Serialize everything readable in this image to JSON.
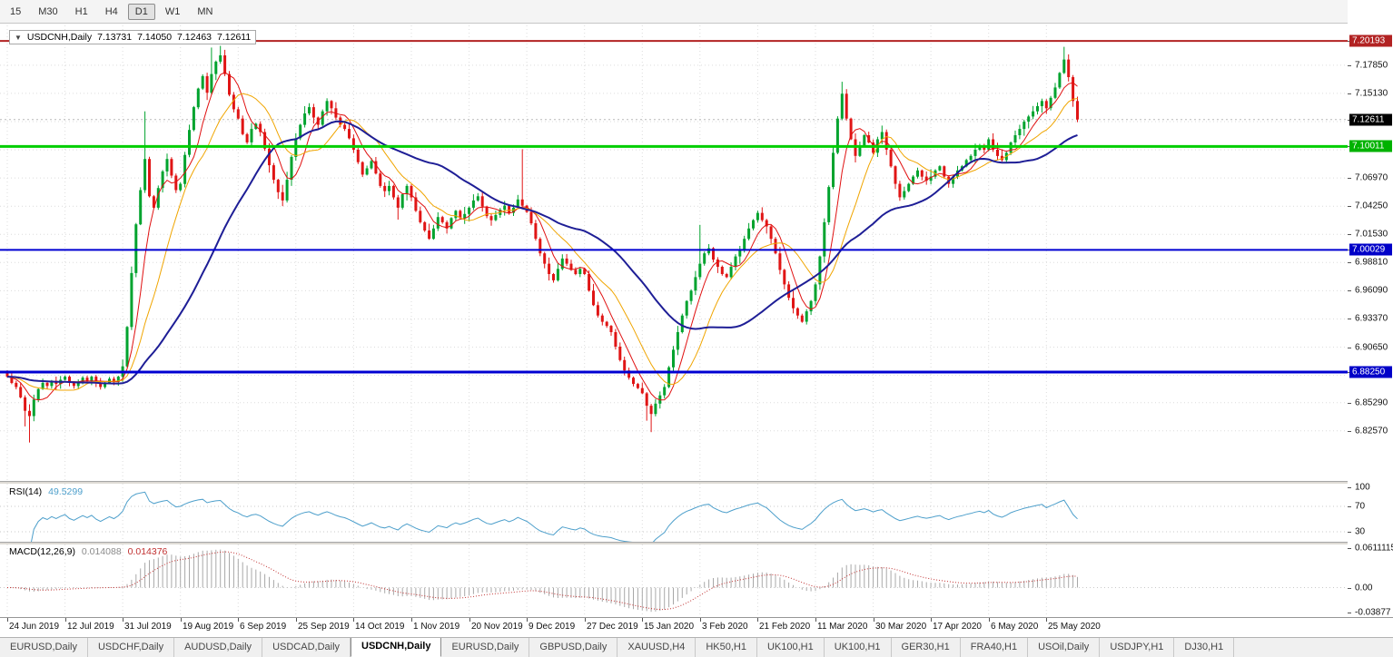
{
  "toolbar": {
    "timeframes": [
      {
        "label": "15",
        "active": false
      },
      {
        "label": "M30",
        "active": false
      },
      {
        "label": "H1",
        "active": false
      },
      {
        "label": "H4",
        "active": false
      },
      {
        "label": "D1",
        "active": true
      },
      {
        "label": "W1",
        "active": false
      },
      {
        "label": "MN",
        "active": false
      }
    ]
  },
  "chart_header": {
    "symbol": "USDCNH,Daily",
    "open": "7.13731",
    "high": "7.14050",
    "low": "7.12463",
    "close": "7.12611"
  },
  "price_axis": {
    "ticks": [
      "7.17850",
      "7.15130",
      "7.06970",
      "7.04250",
      "7.01530",
      "6.98810",
      "6.96090",
      "6.93370",
      "6.90650",
      "6.85290",
      "6.82570"
    ],
    "badges": [
      {
        "label": "7.20193",
        "value": 7.20193,
        "bg": "#B22222"
      },
      {
        "label": "7.12611",
        "value": 7.12611,
        "bg": "#000000"
      },
      {
        "label": "7.10011",
        "value": 7.10011,
        "bg": "#00B200"
      },
      {
        "label": "7.00029",
        "value": 7.00029,
        "bg": "#0000C8"
      },
      {
        "label": "6.88250",
        "value": 6.8825,
        "bg": "#0000C8"
      }
    ]
  },
  "rsi_panel": {
    "name": "RSI(14)",
    "value": "49.5299",
    "line_color": "#4D9FCB",
    "levels": [
      70,
      30
    ],
    "ylim": [
      14.3,
      105.7
    ],
    "axis": [
      {
        "label": "100",
        "value": 100
      },
      {
        "label": "70",
        "value": 70
      },
      {
        "label": "30",
        "value": 30
      }
    ]
  },
  "macd_panel": {
    "name": "MACD(12,26,9)",
    "value_main": "0.014088",
    "value_signal": "0.014376",
    "hist_color": "#A8A8A8",
    "signal_color": "#C03030",
    "ylim": [
      -0.0457,
      0.0668
    ],
    "axis": [
      {
        "label": "0.0611115",
        "value": 0.0611115
      },
      {
        "label": "0.00",
        "value": 0
      },
      {
        "label": "-0.03877",
        "value": -0.03877
      }
    ]
  },
  "time_axis": {
    "dates": [
      "24 Jun 2019",
      "12 Jul 2019",
      "31 Jul 2019",
      "19 Aug 2019",
      "6 Sep 2019",
      "25 Sep 2019",
      "14 Oct 2019",
      "1 Nov 2019",
      "20 Nov 2019",
      "9 Dec 2019",
      "27 Dec 2019",
      "15 Jan 2020",
      "3 Feb 2020",
      "21 Feb 2020",
      "11 Mar 2020",
      "30 Mar 2020",
      "17 Apr 2020",
      "6 May 2020",
      "25 May 2020"
    ]
  },
  "tabs": [
    {
      "label": "EURUSD,Daily",
      "active": false
    },
    {
      "label": "USDCHF,Daily",
      "active": false
    },
    {
      "label": "AUDUSD,Daily",
      "active": false
    },
    {
      "label": "USDCAD,Daily",
      "active": false
    },
    {
      "label": "USDCNH,Daily",
      "active": true
    },
    {
      "label": "EURUSD,Daily",
      "active": false
    },
    {
      "label": "GBPUSD,Daily",
      "active": false
    },
    {
      "label": "XAUUSD,H4",
      "active": false
    },
    {
      "label": "HK50,H1",
      "active": false
    },
    {
      "label": "UK100,H1",
      "active": false
    },
    {
      "label": "UK100,H1",
      "active": false
    },
    {
      "label": "GER30,H1",
      "active": false
    },
    {
      "label": "FRA40,H1",
      "active": false
    },
    {
      "label": "USOil,Daily",
      "active": false
    },
    {
      "label": "USDJPY,H1",
      "active": false
    },
    {
      "label": "DJ30,H1",
      "active": false
    }
  ],
  "chart_data": {
    "type": "candlestick",
    "symbol": "USDCNH",
    "timeframe": "Daily",
    "last_ohlc": {
      "open": 7.13731,
      "high": 7.1405,
      "low": 7.12463,
      "close": 7.12611
    },
    "ylim": [
      6.7774,
      7.2169
    ],
    "grid_prices": [
      7.1785,
      7.1513,
      7.1241,
      7.0969,
      7.0697,
      7.0425,
      7.0153,
      6.9881,
      6.9609,
      6.9337,
      6.9065,
      6.8793,
      6.8529,
      6.8257
    ],
    "hlines": [
      {
        "price": 7.20193,
        "color": "#B22222",
        "width": 2
      },
      {
        "price": 7.10011,
        "color": "#00CE00",
        "width": 3
      },
      {
        "price": 7.00029,
        "color": "#0000D2",
        "width": 2
      },
      {
        "price": 6.8825,
        "color": "#0000D2",
        "width": 3
      }
    ],
    "current_price": 7.12611,
    "up_color": "#00A32E",
    "down_color": "#E01515",
    "ma_lines": [
      {
        "period": 6,
        "color": "#E01010",
        "width": 1
      },
      {
        "period": 13,
        "color": "#F0A500",
        "width": 1
      },
      {
        "period": 34,
        "color": "#1E1E96",
        "width": 2
      }
    ],
    "rsi_period": 14,
    "macd_params": [
      12,
      26,
      9
    ],
    "closes": [
      6.878,
      6.872,
      6.868,
      6.858,
      6.845,
      6.84,
      6.856,
      6.866,
      6.872,
      6.869,
      6.874,
      6.871,
      6.875,
      6.878,
      6.872,
      6.869,
      6.873,
      6.877,
      6.874,
      6.878,
      6.872,
      6.868,
      6.872,
      6.876,
      6.873,
      6.878,
      6.888,
      6.926,
      6.978,
      7.025,
      7.058,
      7.088,
      7.052,
      7.041,
      7.06,
      7.076,
      7.088,
      7.072,
      7.058,
      7.064,
      7.092,
      7.116,
      7.138,
      7.156,
      7.168,
      7.152,
      7.17,
      7.182,
      7.188,
      7.17,
      7.15,
      7.136,
      7.127,
      7.112,
      7.104,
      7.117,
      7.122,
      7.114,
      7.098,
      7.082,
      7.068,
      7.056,
      7.048,
      7.068,
      7.09,
      7.108,
      7.121,
      7.132,
      7.138,
      7.128,
      7.121,
      7.134,
      7.144,
      7.137,
      7.128,
      7.121,
      7.117,
      7.108,
      7.097,
      7.085,
      7.073,
      7.079,
      7.086,
      7.074,
      7.062,
      7.057,
      7.062,
      7.051,
      7.041,
      7.054,
      7.062,
      7.051,
      7.038,
      7.027,
      7.019,
      7.011,
      7.021,
      7.032,
      7.027,
      7.021,
      7.031,
      7.038,
      7.031,
      7.035,
      7.041,
      7.048,
      7.052,
      7.042,
      7.033,
      7.029,
      7.034,
      7.039,
      7.043,
      7.036,
      7.041,
      7.049,
      7.043,
      7.037,
      7.026,
      7.011,
      6.997,
      6.987,
      6.977,
      6.971,
      6.982,
      6.992,
      6.987,
      6.981,
      6.977,
      6.982,
      6.977,
      6.961,
      6.947,
      6.937,
      6.931,
      6.927,
      6.921,
      6.907,
      6.894,
      6.884,
      6.877,
      6.871,
      6.867,
      6.862,
      6.85,
      6.842,
      6.852,
      6.86,
      6.868,
      6.887,
      6.904,
      6.921,
      6.937,
      6.951,
      6.961,
      6.974,
      6.987,
      6.997,
      7.002,
      6.991,
      6.984,
      6.977,
      6.974,
      6.984,
      6.994,
      7.001,
      7.011,
      7.021,
      7.029,
      7.036,
      7.029,
      7.023,
      7.011,
      6.997,
      6.981,
      6.967,
      6.954,
      6.944,
      6.937,
      6.931,
      6.941,
      6.951,
      6.967,
      6.994,
      7.027,
      7.061,
      7.094,
      7.127,
      7.151,
      7.127,
      7.107,
      7.091,
      7.101,
      7.111,
      7.104,
      7.094,
      7.107,
      7.114,
      7.097,
      7.081,
      7.064,
      7.051,
      7.057,
      7.064,
      7.071,
      7.077,
      7.071,
      7.067,
      7.071,
      7.077,
      7.081,
      7.071,
      7.064,
      7.071,
      7.077,
      7.081,
      7.087,
      7.091,
      7.097,
      7.101,
      7.097,
      7.107,
      7.097,
      7.091,
      7.087,
      7.094,
      7.104,
      7.111,
      7.117,
      7.124,
      7.129,
      7.134,
      7.139,
      7.144,
      7.137,
      7.147,
      7.157,
      7.171,
      7.184,
      7.167,
      7.144,
      7.12611
    ],
    "spikes": [
      {
        "i": 4,
        "low": 6.83
      },
      {
        "i": 5,
        "low": 6.8145
      },
      {
        "i": 31,
        "high": 7.134
      },
      {
        "i": 46,
        "high": 7.1955
      },
      {
        "i": 48,
        "high": 7.1972
      },
      {
        "i": 62,
        "low": 7.0425
      },
      {
        "i": 88,
        "low": 7.0295
      },
      {
        "i": 116,
        "high": 7.0975
      },
      {
        "i": 144,
        "low": 6.8355
      },
      {
        "i": 145,
        "low": 6.8245
      },
      {
        "i": 156,
        "high": 7.0245
      },
      {
        "i": 188,
        "high": 7.1625
      },
      {
        "i": 238,
        "high": 7.1962
      }
    ]
  }
}
